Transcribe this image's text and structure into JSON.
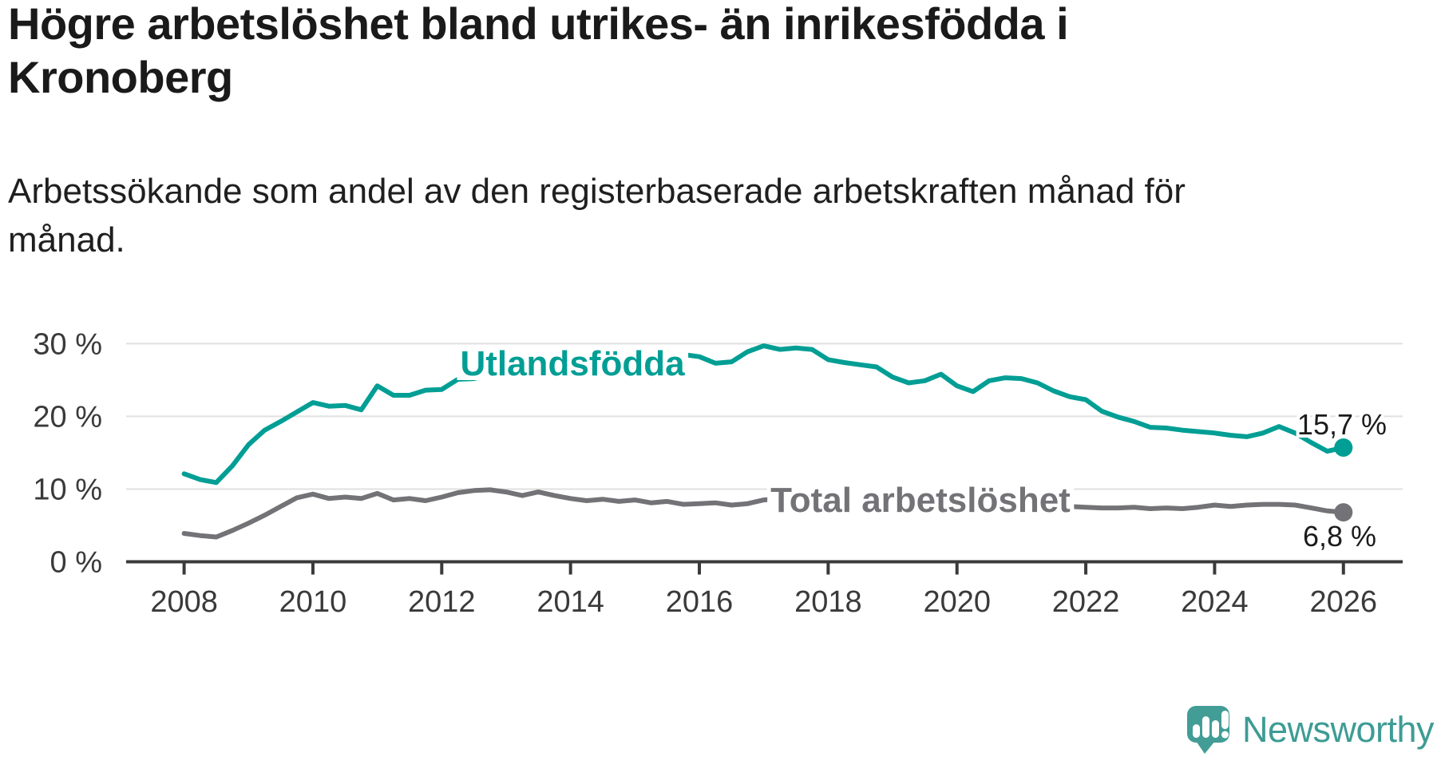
{
  "header": {
    "title": "Högre arbetslöshet bland utrikes- än inrikesfödda i Kronoberg",
    "subtitle": "Arbetssökande som andel av den registerbaserade arbetskraften månad för månad."
  },
  "chart_data": {
    "type": "line",
    "title": "Högre arbetslöshet bland utrikes- än inrikesfödda i Kronoberg",
    "xlabel": "",
    "ylabel": "",
    "x_unit": "year (monthly series, sampled quarterly)",
    "xlim": [
      2007.1,
      2026.92
    ],
    "ylim": [
      0,
      33.5
    ],
    "grid": "horizontal",
    "legend": "inline-labels",
    "yticks": [
      {
        "value": 0,
        "label": "0 %"
      },
      {
        "value": 10,
        "label": "10 %"
      },
      {
        "value": 20,
        "label": "20 %"
      },
      {
        "value": 30,
        "label": "30 %"
      }
    ],
    "xticks": [
      2008,
      2010,
      2012,
      2014,
      2016,
      2018,
      2020,
      2022,
      2024,
      2026
    ],
    "x": [
      2008,
      2008.25,
      2008.5,
      2008.75,
      2009,
      2009.25,
      2009.5,
      2009.75,
      2010,
      2010.25,
      2010.5,
      2010.75,
      2011,
      2011.25,
      2011.5,
      2011.75,
      2012,
      2012.25,
      2012.5,
      2012.75,
      2013,
      2013.25,
      2013.5,
      2013.75,
      2014,
      2014.25,
      2014.5,
      2014.75,
      2015,
      2015.25,
      2015.5,
      2015.75,
      2016,
      2016.25,
      2016.5,
      2016.75,
      2017,
      2017.25,
      2017.5,
      2017.75,
      2018,
      2018.25,
      2018.5,
      2018.75,
      2019,
      2019.25,
      2019.5,
      2019.75,
      2020,
      2020.25,
      2020.5,
      2020.75,
      2021,
      2021.25,
      2021.5,
      2021.75,
      2022,
      2022.25,
      2022.5,
      2022.75,
      2023,
      2023.25,
      2023.5,
      2023.75,
      2024,
      2024.25,
      2024.5,
      2024.75,
      2025,
      2025.25,
      2025.5,
      2025.75,
      2026
    ],
    "series": [
      {
        "name": "Utlandsfödda",
        "color": "#009e94",
        "end_label": "15,7 %",
        "end_value": 15.7,
        "values": [
          12.1,
          11.3,
          10.9,
          13.2,
          16.1,
          18.1,
          19.3,
          20.6,
          21.9,
          21.4,
          21.5,
          20.9,
          24.2,
          22.9,
          22.9,
          23.6,
          23.7,
          25.1,
          25.2,
          25.7,
          25.9,
          26.1,
          26.3,
          26.5,
          26.8,
          27.0,
          27.2,
          27.5,
          27.7,
          28.0,
          28.3,
          28.5,
          28.2,
          27.3,
          27.5,
          28.9,
          29.7,
          29.2,
          29.4,
          29.2,
          27.8,
          27.4,
          27.1,
          26.8,
          25.4,
          24.6,
          24.9,
          25.8,
          24.2,
          23.4,
          24.9,
          25.3,
          25.2,
          24.6,
          23.5,
          22.7,
          22.3,
          20.7,
          19.9,
          19.3,
          18.5,
          18.4,
          18.1,
          17.9,
          17.7,
          17.4,
          17.2,
          17.7,
          18.6,
          17.7,
          16.4,
          15.2,
          15.7
        ]
      },
      {
        "name": "Total arbetslöshet",
        "color": "#737377",
        "end_label": "6,8 %",
        "end_value": 6.8,
        "values": [
          3.9,
          3.6,
          3.4,
          4.3,
          5.3,
          6.4,
          7.6,
          8.8,
          9.3,
          8.7,
          8.9,
          8.7,
          9.4,
          8.5,
          8.7,
          8.4,
          8.9,
          9.5,
          9.8,
          9.9,
          9.6,
          9.1,
          9.6,
          9.1,
          8.7,
          8.4,
          8.6,
          8.3,
          8.5,
          8.1,
          8.3,
          7.9,
          8.0,
          8.1,
          7.8,
          8.0,
          8.5,
          8.7,
          8.4,
          8.1,
          7.9,
          7.7,
          7.6,
          7.5,
          7.4,
          7.4,
          7.5,
          7.8,
          8.3,
          9.0,
          9.2,
          8.9,
          8.5,
          8.2,
          7.8,
          7.6,
          7.5,
          7.4,
          7.4,
          7.5,
          7.3,
          7.4,
          7.3,
          7.5,
          7.8,
          7.6,
          7.8,
          7.9,
          7.9,
          7.8,
          7.4,
          7.0,
          6.8
        ]
      }
    ],
    "colors": {
      "utlandsfodda": "#009e94",
      "total": "#737377",
      "grid": "#e0e0e0",
      "axis": "#3a3a3a",
      "tick_text": "#3a3a3a",
      "value_text": "#1b1b1b"
    }
  },
  "footer": {
    "brand": "Newsworthy",
    "brand_color": "#3d9c95",
    "icon": "newsworthy-speech-bubble-bar-chart-icon"
  }
}
